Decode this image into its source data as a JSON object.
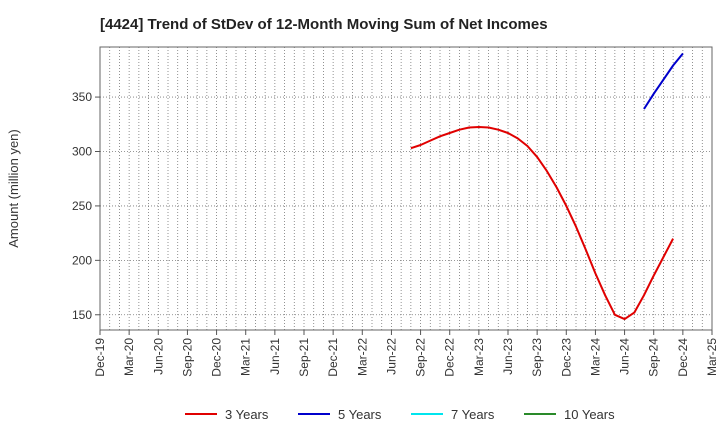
{
  "chart_data": {
    "type": "line",
    "title": "[4424]  Trend of StDev of 12-Month Moving Sum of Net Incomes",
    "ylabel": "Amount (million yen)",
    "xlabel": "",
    "x_ticks": [
      "Dec-19",
      "Mar-20",
      "Jun-20",
      "Sep-20",
      "Dec-20",
      "Mar-21",
      "Jun-21",
      "Sep-21",
      "Dec-21",
      "Mar-22",
      "Jun-22",
      "Sep-22",
      "Dec-22",
      "Mar-23",
      "Jun-23",
      "Sep-23",
      "Dec-23",
      "Mar-24",
      "Jun-24",
      "Sep-24",
      "Dec-24",
      "Mar-25"
    ],
    "y_ticks": [
      150,
      200,
      250,
      300,
      350
    ],
    "ylim": [
      136,
      396
    ],
    "grid": true,
    "legend_position": "bottom",
    "series": [
      {
        "name": "3 Years",
        "color": "#e00000",
        "points": [
          [
            "Aug-22",
            303
          ],
          [
            "Sep-22",
            306
          ],
          [
            "Oct-22",
            310
          ],
          [
            "Nov-22",
            314
          ],
          [
            "Dec-22",
            317
          ],
          [
            "Jan-23",
            320
          ],
          [
            "Feb-23",
            322
          ],
          [
            "Mar-23",
            322.5
          ],
          [
            "Apr-23",
            322
          ],
          [
            "May-23",
            320
          ],
          [
            "Jun-23",
            317
          ],
          [
            "Jul-23",
            312
          ],
          [
            "Aug-23",
            305
          ],
          [
            "Sep-23",
            295
          ],
          [
            "Oct-23",
            282
          ],
          [
            "Nov-23",
            267
          ],
          [
            "Dec-23",
            250
          ],
          [
            "Jan-24",
            231
          ],
          [
            "Feb-24",
            210
          ],
          [
            "Mar-24",
            188
          ],
          [
            "Apr-24",
            168
          ],
          [
            "May-24",
            150
          ],
          [
            "Jun-24",
            146
          ],
          [
            "Jul-24",
            152
          ],
          [
            "Aug-24",
            168
          ],
          [
            "Sep-24",
            186
          ],
          [
            "Oct-24",
            203
          ],
          [
            "Nov-24",
            220
          ]
        ]
      },
      {
        "name": "5 Years",
        "color": "#0000cc",
        "points": [
          [
            "Aug-24",
            339
          ],
          [
            "Sep-24",
            353
          ],
          [
            "Oct-24",
            366
          ],
          [
            "Nov-24",
            379
          ],
          [
            "Dec-24",
            390
          ]
        ]
      },
      {
        "name": "7 Years",
        "color": "#00e5ee",
        "points": []
      },
      {
        "name": "10 Years",
        "color": "#2a8a2a",
        "points": []
      }
    ]
  }
}
